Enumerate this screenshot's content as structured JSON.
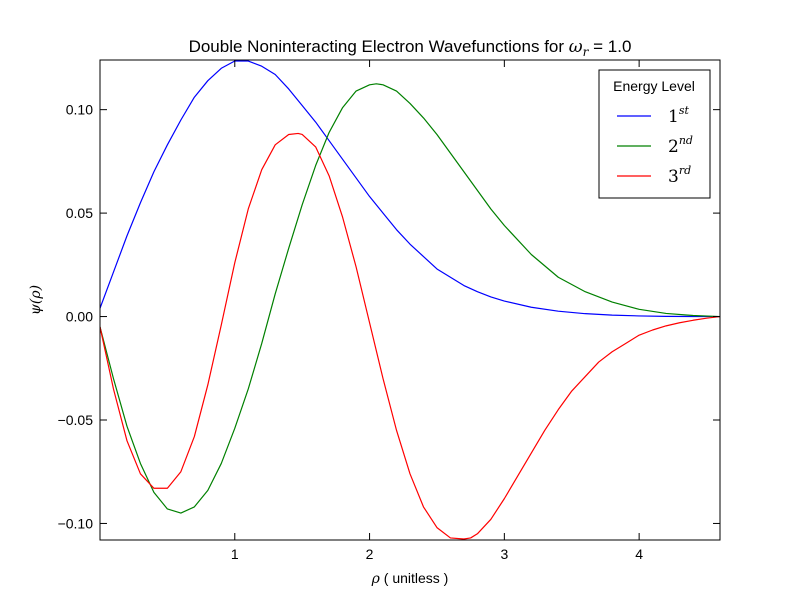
{
  "chart_data": {
    "type": "line",
    "title_prefix": "Double Noninteracting Electron Wavefunctions for ",
    "title_symbol": "ω",
    "title_symbol_sub": "r",
    "title_suffix": " = 1.0",
    "xlabel_symbol": "ρ",
    "xlabel_text": " ( unitless )",
    "ylabel_symbol": "ψ(ρ)",
    "xlim": [
      0.0,
      4.6
    ],
    "ylim": [
      -0.108,
      0.124
    ],
    "xticks": [
      1,
      2,
      3,
      4
    ],
    "yticks": [
      0.1,
      0.05,
      0.0,
      -0.05,
      -0.1
    ],
    "xtick_labels": [
      "1",
      "2",
      "3",
      "4"
    ],
    "ytick_labels": [
      "0.10",
      "0.05",
      "0.00",
      "−0.05",
      "−0.10"
    ],
    "grid": false,
    "legend": {
      "placement": "top-right",
      "title": "Energy Level",
      "entries": [
        {
          "base": "1",
          "sup": "st"
        },
        {
          "base": "2",
          "sup": "nd"
        },
        {
          "base": "3",
          "sup": "rd"
        }
      ]
    },
    "series": [
      {
        "color": "#0000ff",
        "x": [
          0.0,
          0.1,
          0.2,
          0.3,
          0.4,
          0.5,
          0.6,
          0.7,
          0.8,
          0.9,
          1.0,
          1.1,
          1.2,
          1.3,
          1.4,
          1.5,
          1.6,
          1.7,
          1.8,
          1.9,
          2.0,
          2.1,
          2.2,
          2.3,
          2.4,
          2.5,
          2.6,
          2.7,
          2.8,
          2.9,
          3.0,
          3.2,
          3.4,
          3.6,
          3.8,
          4.0,
          4.2,
          4.4,
          4.6
        ],
        "y": [
          0.004,
          0.0215,
          0.039,
          0.055,
          0.07,
          0.083,
          0.095,
          0.106,
          0.114,
          0.12,
          0.1235,
          0.1235,
          0.121,
          0.117,
          0.11,
          0.102,
          0.094,
          0.085,
          0.076,
          0.067,
          0.058,
          0.05,
          0.042,
          0.035,
          0.029,
          0.023,
          0.019,
          0.015,
          0.012,
          0.0095,
          0.0075,
          0.0045,
          0.0026,
          0.0014,
          0.0007,
          0.0003,
          0.0001,
          4e-05,
          0.0
        ]
      },
      {
        "color": "#008000",
        "x": [
          0.0,
          0.1,
          0.2,
          0.3,
          0.4,
          0.5,
          0.6,
          0.7,
          0.8,
          0.9,
          1.0,
          1.1,
          1.2,
          1.3,
          1.4,
          1.5,
          1.6,
          1.7,
          1.8,
          1.9,
          2.0,
          2.05,
          2.1,
          2.2,
          2.3,
          2.4,
          2.5,
          2.6,
          2.7,
          2.8,
          2.9,
          3.0,
          3.2,
          3.4,
          3.6,
          3.8,
          4.0,
          4.2,
          4.4,
          4.6
        ],
        "y": [
          -0.005,
          -0.03,
          -0.053,
          -0.071,
          -0.085,
          -0.093,
          -0.095,
          -0.092,
          -0.084,
          -0.071,
          -0.054,
          -0.035,
          -0.013,
          0.011,
          0.033,
          0.054,
          0.073,
          0.089,
          0.101,
          0.109,
          0.112,
          0.1125,
          0.112,
          0.109,
          0.103,
          0.096,
          0.088,
          0.079,
          0.07,
          0.061,
          0.052,
          0.044,
          0.03,
          0.019,
          0.012,
          0.007,
          0.0035,
          0.0015,
          0.0005,
          0.0
        ]
      },
      {
        "color": "#ff0000",
        "x": [
          0.0,
          0.1,
          0.2,
          0.3,
          0.4,
          0.5,
          0.6,
          0.7,
          0.8,
          0.9,
          1.0,
          1.1,
          1.2,
          1.3,
          1.4,
          1.47,
          1.5,
          1.6,
          1.7,
          1.8,
          1.9,
          2.0,
          2.1,
          2.2,
          2.3,
          2.4,
          2.5,
          2.6,
          2.7,
          2.75,
          2.8,
          2.9,
          3.0,
          3.1,
          3.2,
          3.3,
          3.4,
          3.5,
          3.6,
          3.7,
          3.8,
          3.9,
          4.0,
          4.1,
          4.2,
          4.3,
          4.4,
          4.5,
          4.6
        ],
        "y": [
          -0.005,
          -0.035,
          -0.06,
          -0.076,
          -0.083,
          -0.083,
          -0.075,
          -0.058,
          -0.033,
          -0.004,
          0.026,
          0.052,
          0.071,
          0.083,
          0.088,
          0.0885,
          0.088,
          0.082,
          0.068,
          0.048,
          0.024,
          -0.003,
          -0.03,
          -0.055,
          -0.076,
          -0.092,
          -0.102,
          -0.107,
          -0.1075,
          -0.107,
          -0.105,
          -0.098,
          -0.088,
          -0.077,
          -0.066,
          -0.055,
          -0.045,
          -0.036,
          -0.029,
          -0.022,
          -0.017,
          -0.013,
          -0.009,
          -0.0065,
          -0.0045,
          -0.003,
          -0.0018,
          -0.0008,
          0.0
        ]
      }
    ]
  }
}
